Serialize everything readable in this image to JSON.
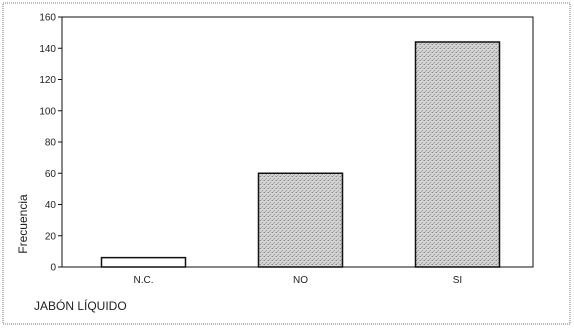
{
  "chart_data": {
    "type": "bar",
    "categories": [
      "N.C.",
      "NO",
      "SI"
    ],
    "values": [
      6,
      60,
      144
    ],
    "ylim": [
      0,
      160
    ],
    "yticks": [
      0,
      20,
      40,
      60,
      80,
      100,
      120,
      140,
      160
    ],
    "ylabel": "Frecuencia",
    "xlabel": "JABÓN LÍQUIDO",
    "grid": false,
    "legend": "none",
    "bar_fill": "#c8c8c8",
    "bar_stroke": "#111111",
    "axis_color": "#111111",
    "frame_color": "#777777"
  }
}
